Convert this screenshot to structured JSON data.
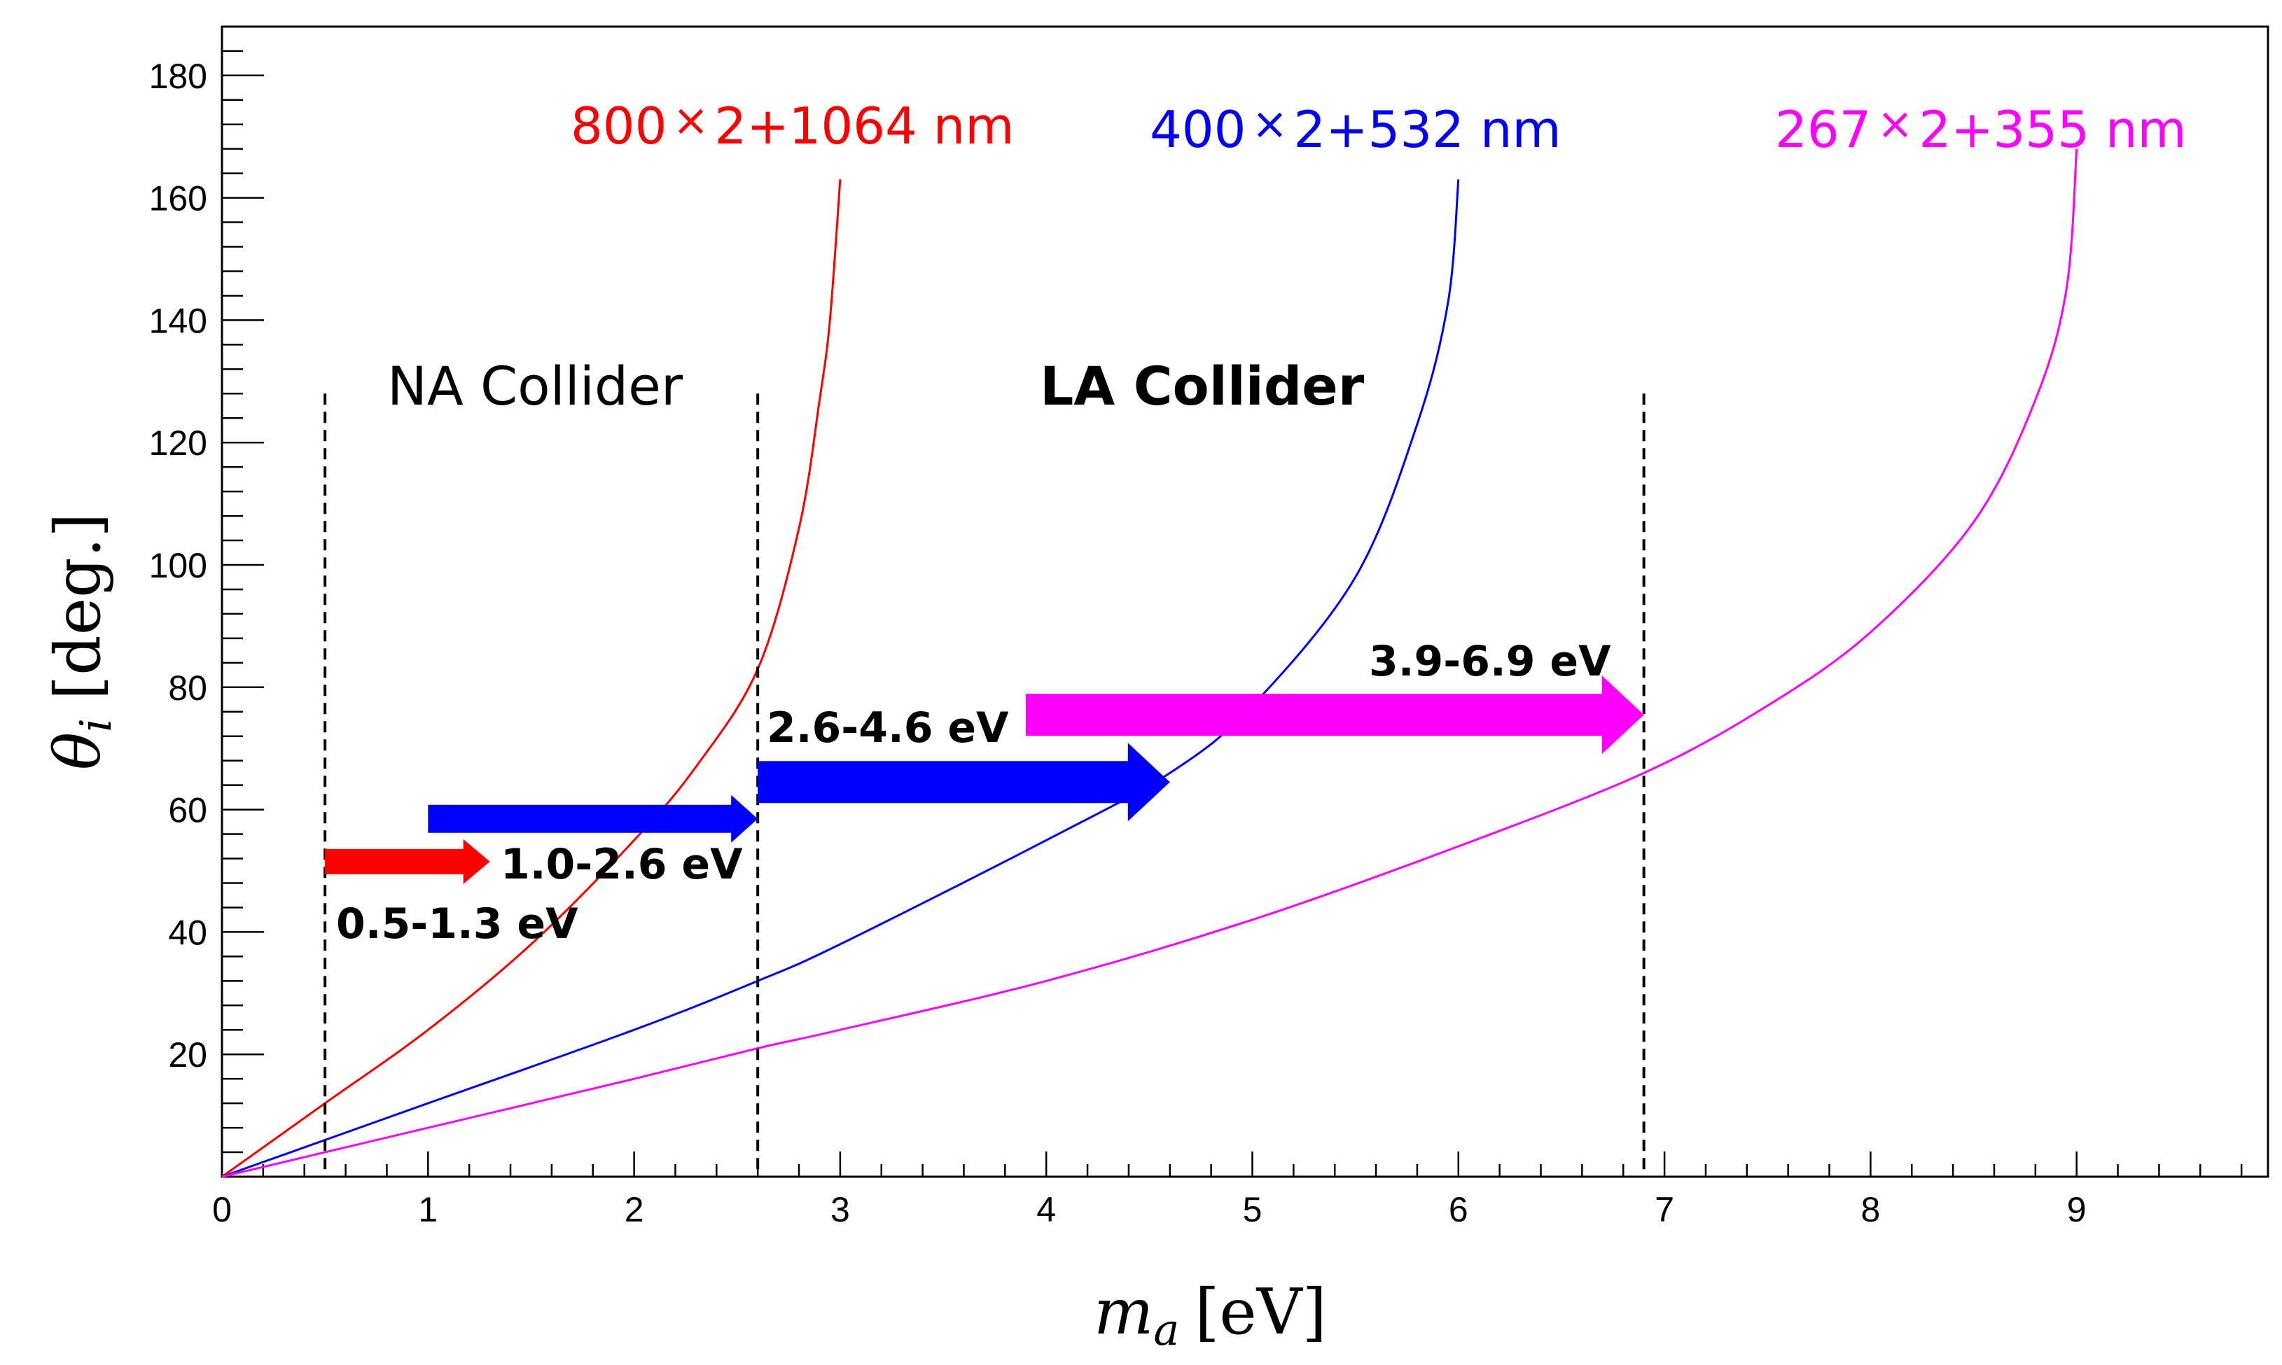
{
  "chart_data": {
    "type": "line",
    "xlabel_symbol": "m",
    "xlabel_subscript": "a",
    "xlabel_unit": "[eV]",
    "ylabel_symbol": "θ",
    "ylabel_subscript": "i",
    "ylabel_unit": "[deg.]",
    "xlim": [
      0,
      9.9
    ],
    "ylim": [
      0,
      184
    ],
    "x_ticks": [
      0,
      1,
      2,
      3,
      4,
      5,
      6,
      7,
      8,
      9
    ],
    "y_ticks": [
      20,
      40,
      60,
      80,
      100,
      120,
      140,
      160,
      180
    ],
    "grid": false,
    "series": [
      {
        "name": "800×2+1064 nm",
        "label_num": "800",
        "label_rest": "2+1064 nm",
        "color": "#ff0000",
        "x": [
          0,
          0.5,
          1.0,
          1.5,
          2.0,
          2.3,
          2.6,
          2.8,
          2.9,
          2.95,
          3.0
        ],
        "y": [
          0,
          12,
          24,
          38,
          55,
          67,
          83,
          106,
          127,
          140,
          163
        ]
      },
      {
        "name": "400×2+532 nm",
        "label_num": "400",
        "label_rest": "2+532 nm",
        "color": "#0000ff",
        "x": [
          0,
          0.5,
          1.0,
          2.0,
          2.6,
          3.0,
          4.0,
          4.6,
          5.0,
          5.5,
          5.8,
          5.95,
          6.0
        ],
        "y": [
          0,
          6,
          12,
          24,
          32,
          38,
          55,
          66,
          77,
          98,
          123,
          143,
          163
        ]
      },
      {
        "name": "267×2+355 nm",
        "label_num": "267",
        "label_rest": "2+355 nm",
        "color": "#ff00ff",
        "x": [
          0,
          1.0,
          2.0,
          2.6,
          3.0,
          4.0,
          5.0,
          6.0,
          6.9,
          7.5,
          8.0,
          8.5,
          8.8,
          8.95,
          9.0
        ],
        "y": [
          0,
          8,
          16,
          21,
          24,
          32,
          42,
          54,
          66,
          77,
          89,
          107,
          127,
          145,
          168
        ]
      }
    ],
    "regions": [
      {
        "label": "NA Collider",
        "bold": false
      },
      {
        "label": "LA Collider",
        "bold": true
      }
    ],
    "vlines": [
      0.5,
      2.6,
      6.9
    ],
    "vline_top": 128,
    "ranges": [
      {
        "label": "0.5-1.3 eV",
        "x_start": 0.5,
        "x_end": 1.3,
        "y": 51.5,
        "color": "#ff0000"
      },
      {
        "label": "1.0-2.6 eV",
        "x_start": 1.0,
        "x_end": 2.6,
        "y": 58.5,
        "color": "#0000ff"
      },
      {
        "label": "2.6-4.6 eV",
        "x_start": 2.6,
        "x_end": 4.6,
        "y": 64.5,
        "color": "#0000ff"
      },
      {
        "label": "3.9-6.9 eV",
        "x_start": 3.9,
        "x_end": 6.9,
        "y": 75.5,
        "color": "#ff00ff"
      }
    ]
  }
}
